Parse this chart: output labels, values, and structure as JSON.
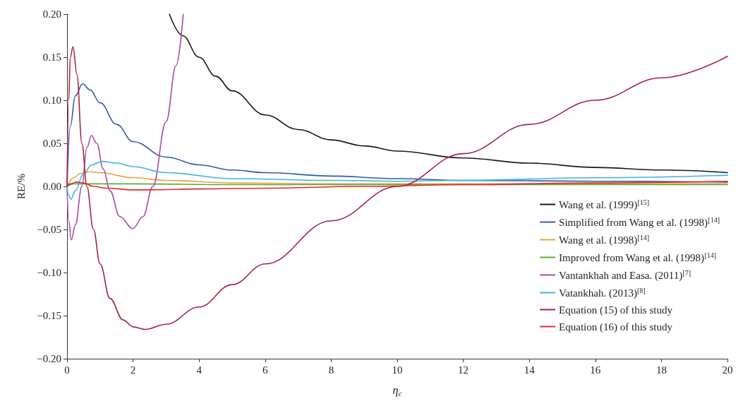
{
  "chart_data": {
    "type": "line",
    "xlabel": "η$_{c}$",
    "ylabel": "RE/%",
    "xlim": [
      0,
      20
    ],
    "xticks": [
      0,
      2,
      4,
      6,
      8,
      10,
      12,
      14,
      16,
      18,
      20
    ],
    "ylim": [
      -0.2,
      0.2
    ],
    "yticks": [
      {
        "value": -0.2,
        "label": "−0.20"
      },
      {
        "value": -0.15,
        "label": "−0.15"
      },
      {
        "value": -0.1,
        "label": "−0.10"
      },
      {
        "value": -0.05,
        "label": "−0.05"
      },
      {
        "value": 0,
        "label": "0.00"
      },
      {
        "value": 0.05,
        "label": "0.05"
      },
      {
        "value": 0.1,
        "label": "0.10"
      },
      {
        "value": 0.15,
        "label": "0.15"
      },
      {
        "value": 0.2,
        "label": "0.20"
      }
    ],
    "grid": false,
    "legend": "right",
    "marker": "none",
    "line_style": "solid",
    "series": [
      {
        "name": "Wang et al. (1999)$^{[15]}$",
        "color": "#1a1a1a",
        "x": [
          3.1,
          3.5,
          4,
          4.5,
          5,
          6,
          7,
          8,
          9,
          10,
          12,
          14,
          16,
          18,
          20
        ],
        "values": [
          0.2,
          0.175,
          0.15,
          0.128,
          0.111,
          0.083,
          0.066,
          0.054,
          0.047,
          0.041,
          0.033,
          0.027,
          0.022,
          0.019,
          0.016
        ]
      },
      {
        "name": "Simplified from Wang et al. (1998)$^{[14]}$",
        "color": "#2b5ca8",
        "x": [
          0,
          0.1,
          0.25,
          0.47,
          0.7,
          1,
          1.5,
          2,
          3,
          4,
          5,
          6,
          8,
          10,
          12,
          16,
          20
        ],
        "values": [
          0,
          0.07,
          0.105,
          0.119,
          0.112,
          0.097,
          0.072,
          0.052,
          0.034,
          0.025,
          0.019,
          0.016,
          0.012,
          0.009,
          0.007,
          0.006,
          0.005
        ]
      },
      {
        "name": "Wang et al. (1998)$^{[14]}$",
        "color": "#e8a33d",
        "x": [
          0,
          0.2,
          0.4,
          0.7,
          1,
          2,
          3,
          5,
          8,
          12,
          20
        ],
        "values": [
          0,
          0.01,
          0.015,
          0.017,
          0.016,
          0.01,
          0.007,
          0.004,
          0.003,
          0.003,
          0.003
        ]
      },
      {
        "name": "Improved from Wang et al. (1998)$^{[14]}$",
        "color": "#5aae3c",
        "x": [
          0,
          0.2,
          0.5,
          2,
          5,
          10,
          20
        ],
        "values": [
          0,
          0.003,
          0.003,
          0.003,
          0.002,
          0.002,
          0.002
        ]
      },
      {
        "name": "Vantankhah and Easa. (2011)$^{[7]}$",
        "color": "#a64ca6",
        "x": [
          0,
          0.05,
          0.13,
          0.25,
          0.45,
          0.6,
          0.74,
          0.9,
          1.1,
          1.3,
          1.6,
          1.99,
          2.3,
          2.6,
          3,
          3.3,
          3.52
        ],
        "values": [
          0,
          -0.04,
          -0.062,
          -0.045,
          0,
          0.045,
          0.059,
          0.05,
          0.02,
          -0.005,
          -0.035,
          -0.049,
          -0.035,
          0,
          0.075,
          0.14,
          0.2
        ]
      },
      {
        "name": "Vatankhah. (2013)$^{[8]}$",
        "color": "#3cb4e0",
        "x": [
          0,
          0.05,
          0.12,
          0.25,
          0.5,
          0.75,
          1.06,
          1.5,
          2,
          3,
          5,
          8,
          10,
          12,
          16,
          20
        ],
        "values": [
          0,
          -0.01,
          -0.015,
          -0.005,
          0.015,
          0.025,
          0.029,
          0.027,
          0.023,
          0.016,
          0.009,
          0.007,
          0.006,
          0.007,
          0.01,
          0.013
        ]
      },
      {
        "name": "Equation (15) of this study",
        "color": "#a8243c",
        "x": [
          0,
          0.05,
          0.1,
          0.18,
          0.3,
          0.45,
          0.6,
          0.8,
          1,
          1.3,
          1.7,
          2,
          2.37,
          3,
          4,
          5,
          6,
          8,
          10,
          12,
          14,
          16,
          18,
          20
        ],
        "values": [
          0,
          0.1,
          0.15,
          0.162,
          0.13,
          0.05,
          0,
          -0.05,
          -0.09,
          -0.13,
          -0.155,
          -0.163,
          -0.166,
          -0.16,
          -0.14,
          -0.114,
          -0.09,
          -0.04,
          0,
          0.038,
          0.072,
          0.1,
          0.126,
          0.151
        ]
      },
      {
        "name": "Equation (16) of this study",
        "color": "#e8262b",
        "x": [
          0,
          0.1,
          0.3,
          0.5,
          0.8,
          1.2,
          2,
          2.5,
          4,
          6,
          9,
          12,
          16,
          20
        ],
        "values": [
          0,
          0.003,
          0.005,
          0.004,
          0,
          -0.002,
          -0.004,
          -0.004,
          -0.003,
          -0.002,
          0,
          0.002,
          0.004,
          0.006
        ]
      }
    ]
  }
}
